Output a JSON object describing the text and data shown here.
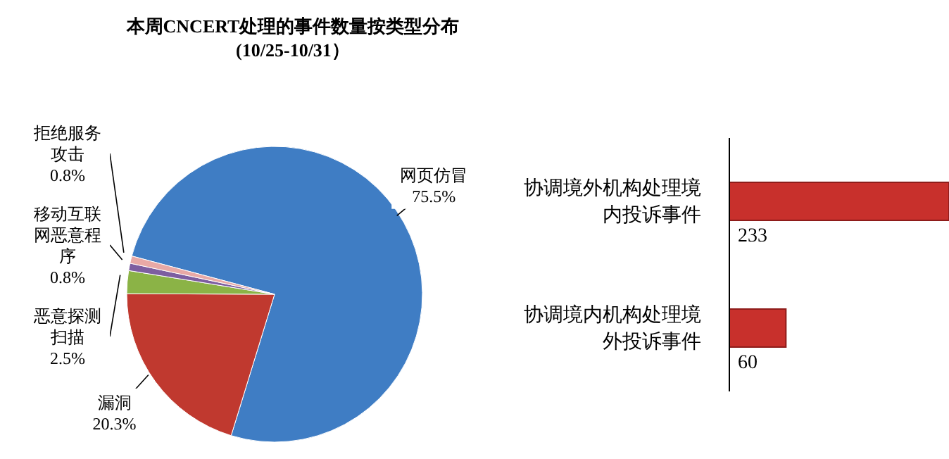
{
  "chart_data": [
    {
      "type": "pie",
      "title": "本周CNCERT处理的事件数量按类型分布",
      "subtitle": "(10/25-10/31）",
      "categories": [
        "网页仿冒",
        "漏洞",
        "恶意探测扫描",
        "移动互联网恶意程序",
        "拒绝服务攻击"
      ],
      "values": [
        75.5,
        20.3,
        2.5,
        0.8,
        0.8
      ],
      "colors": [
        "#3f7dc4",
        "#c0392f",
        "#8bb346",
        "#7d5ea0",
        "#e8a9a6"
      ],
      "value_labels": [
        "75.5%",
        "20.3%",
        "2.5%",
        "0.8%",
        "0.8%"
      ]
    },
    {
      "type": "bar",
      "orientation": "horizontal",
      "categories": [
        "协调境外机构处理境内投诉事件",
        "协调境内机构处理境外投诉事件"
      ],
      "values": [
        233,
        60
      ],
      "color": "#c8302c",
      "data_labels": true,
      "tick_labels": "y"
    }
  ]
}
